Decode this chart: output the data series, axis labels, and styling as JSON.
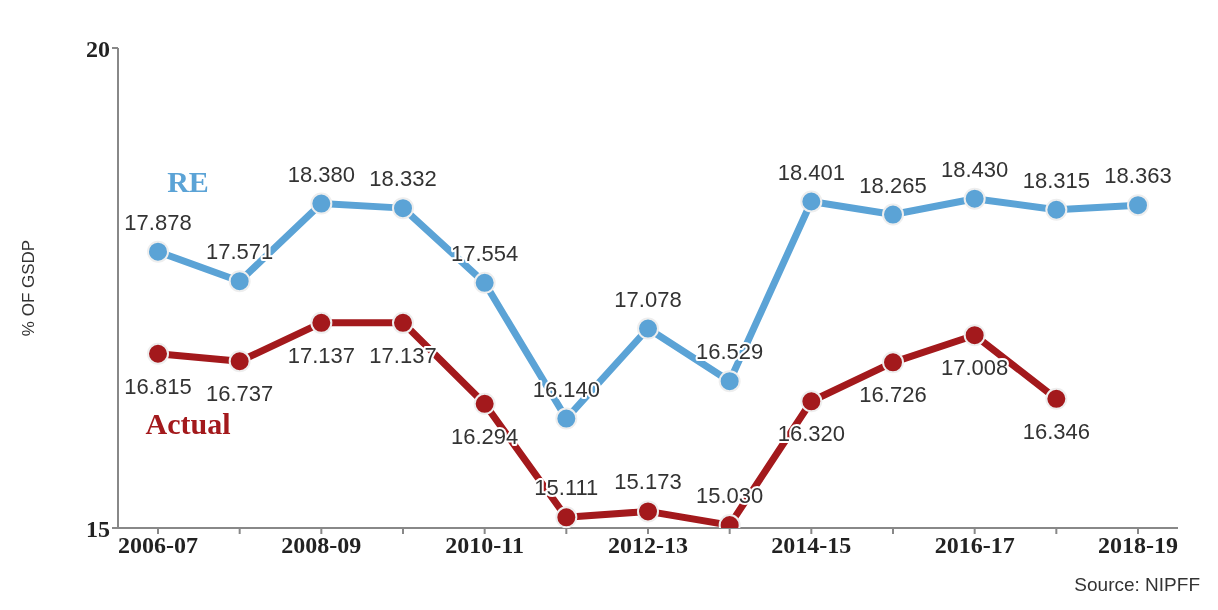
{
  "chart_data": {
    "type": "line",
    "ylabel": "% OF GSDP",
    "categories": [
      "2006-07",
      null,
      "2008-09",
      null,
      "2010-11",
      null,
      "2012-13",
      null,
      "2014-15",
      null,
      "2016-17",
      null,
      "2018-19"
    ],
    "series": [
      {
        "name": "RE",
        "color": "#5ba3d6",
        "values": [
          17.878,
          17.571,
          18.38,
          18.332,
          17.554,
          16.14,
          17.078,
          16.529,
          18.401,
          18.265,
          18.43,
          18.315,
          18.363
        ],
        "value_labels": [
          "17.878",
          "17.571",
          "18.380",
          "18.332",
          "17.554",
          "16.140",
          "17.078",
          "16.529",
          "18.401",
          "18.265",
          "18.430",
          "18.315",
          "18.363"
        ]
      },
      {
        "name": "Actual",
        "color": "#a3191c",
        "values": [
          16.815,
          16.737,
          17.137,
          17.137,
          16.294,
          15.111,
          15.173,
          15.03,
          16.32,
          16.726,
          17.008,
          16.346,
          null
        ],
        "value_labels": [
          "16.815",
          "16.737",
          "17.137",
          "17.137",
          "16.294",
          "15.111",
          "15.173",
          "15.030",
          "16.320",
          "16.726",
          "17.008",
          "16.346",
          null
        ]
      }
    ],
    "ylim": [
      15,
      20
    ],
    "yticks": [
      15,
      20
    ],
    "grid": false,
    "legend": false,
    "marker": "circle",
    "line_style": "solid",
    "annotations": [
      "Source: NIPFF"
    ]
  }
}
